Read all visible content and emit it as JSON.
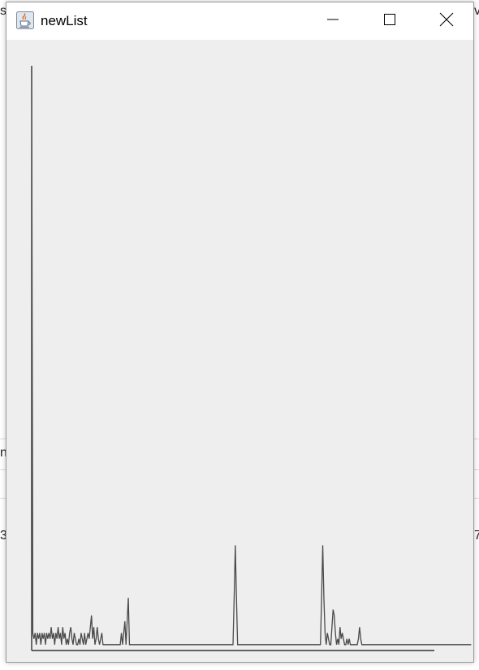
{
  "window": {
    "title": "newList"
  },
  "background": {
    "left_fragments": [
      "s",
      "ni",
      "3"
    ],
    "right_fragments": [
      "v",
      "7"
    ]
  },
  "icons": {
    "app": "java-coffee-icon",
    "minimize": "minimize-icon",
    "maximize": "maximize-icon",
    "close": "close-icon"
  },
  "chart_data": {
    "type": "line",
    "title": "",
    "xlabel": "",
    "ylabel": "",
    "grid": false,
    "legend": "none",
    "xlim": [
      0,
      350
    ],
    "ylim": [
      0,
      100
    ],
    "series": [
      {
        "values": [
          100,
          3,
          2,
          3,
          1,
          3,
          2,
          3,
          1,
          3,
          2,
          3,
          1,
          3,
          2,
          3,
          2,
          4,
          2,
          3,
          1,
          3,
          2,
          4,
          2,
          3,
          1,
          4,
          2,
          3,
          1,
          2,
          1,
          3,
          4,
          2,
          1,
          3,
          2,
          1,
          1,
          2,
          1,
          3,
          2,
          1,
          3,
          1,
          2,
          3,
          2,
          4,
          6,
          2,
          4,
          1,
          2,
          4,
          2,
          1,
          2,
          3,
          1,
          1,
          1,
          1,
          1,
          1,
          1,
          1,
          1,
          1,
          1,
          1,
          1,
          1,
          1,
          1,
          3,
          1,
          3,
          5,
          1,
          5,
          9,
          1,
          1,
          1,
          1,
          1,
          1,
          1,
          1,
          1,
          1,
          1,
          1,
          1,
          1,
          1,
          1,
          1,
          1,
          1,
          1,
          1,
          1,
          1,
          1,
          1,
          1,
          1,
          1,
          1,
          1,
          1,
          1,
          1,
          1,
          1,
          1,
          1,
          1,
          1,
          1,
          1,
          1,
          1,
          1,
          1,
          1,
          1,
          1,
          1,
          1,
          1,
          1,
          1,
          1,
          1,
          1,
          1,
          1,
          1,
          1,
          1,
          1,
          1,
          1,
          1,
          1,
          1,
          1,
          1,
          1,
          1,
          1,
          1,
          1,
          1,
          1,
          1,
          1,
          1,
          1,
          1,
          1,
          1,
          1,
          1,
          1,
          1,
          1,
          1,
          1,
          1,
          9,
          18,
          9,
          1,
          1,
          1,
          1,
          1,
          1,
          1,
          1,
          1,
          1,
          1,
          1,
          1,
          1,
          1,
          1,
          1,
          1,
          1,
          1,
          1,
          1,
          1,
          1,
          1,
          1,
          1,
          1,
          1,
          1,
          1,
          1,
          1,
          1,
          1,
          1,
          1,
          1,
          1,
          1,
          1,
          1,
          1,
          1,
          1,
          1,
          1,
          1,
          1,
          1,
          1,
          1,
          1,
          1,
          1,
          1,
          1,
          1,
          1,
          1,
          1,
          1,
          1,
          1,
          1,
          1,
          1,
          1,
          1,
          1,
          1,
          1,
          1,
          9,
          18,
          9,
          3,
          1,
          3,
          2,
          1,
          1,
          4,
          7,
          6,
          3,
          1,
          2,
          1,
          4,
          2,
          3,
          2,
          1,
          1,
          2,
          1,
          2,
          1,
          1,
          1,
          1,
          1,
          1,
          1,
          2,
          4,
          2,
          1,
          1,
          1,
          1,
          1,
          1,
          1,
          1,
          1,
          1,
          1,
          1,
          1,
          1,
          1,
          1,
          1,
          1,
          1,
          1,
          1,
          1,
          1,
          1,
          1,
          1,
          1,
          1,
          1,
          1,
          1,
          1,
          1,
          1,
          1,
          1,
          1,
          1,
          1,
          1,
          1,
          1,
          1,
          1,
          1,
          1,
          1,
          1,
          1,
          1,
          1,
          1,
          1,
          1,
          1,
          1,
          1,
          1,
          1,
          1,
          1,
          1,
          1,
          1,
          1,
          1,
          1,
          1,
          1,
          1,
          1,
          1,
          1,
          1,
          1,
          1,
          1,
          1,
          1,
          1,
          1,
          1,
          1,
          1,
          1,
          1,
          1,
          1,
          1,
          1,
          1,
          1,
          1,
          1,
          1,
          1
        ]
      }
    ]
  },
  "colors": {
    "window_bg": "#eeeeee",
    "titlebar_bg": "#ffffff",
    "plot_line": "#4a4a4a",
    "axis_line": "#333333"
  }
}
